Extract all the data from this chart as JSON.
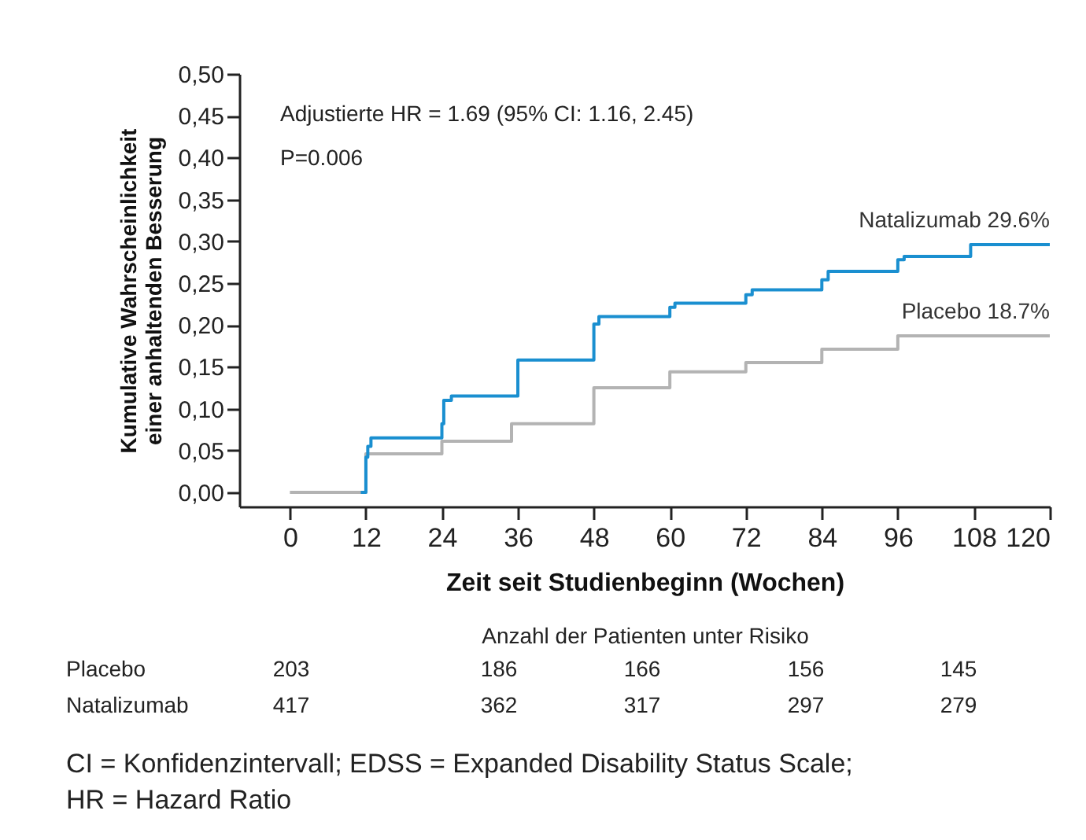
{
  "chart_data": {
    "type": "step",
    "xlabel": "Zeit seit Studienbeginn (Wochen)",
    "ylabel": "Kumulative Wahrscheinlichkeit einer anhaltenden Besserung",
    "xlim": [
      -8,
      120
    ],
    "xticks": [
      0,
      12,
      24,
      36,
      48,
      60,
      72,
      84,
      96,
      108,
      120
    ],
    "ylim": [
      -0.017,
      0.5
    ],
    "yticks": [
      {
        "value": 0,
        "label": "0,00"
      },
      {
        "value": 0.05,
        "label": "0,05"
      },
      {
        "value": 0.1,
        "label": "0,10"
      },
      {
        "value": 0.15,
        "label": "0,15"
      },
      {
        "value": 0.2,
        "label": "0,20"
      },
      {
        "value": 0.25,
        "label": "0,25"
      },
      {
        "value": 0.3,
        "label": "0,30"
      },
      {
        "value": 0.35,
        "label": "0,35"
      },
      {
        "value": 0.4,
        "label": "0,40"
      },
      {
        "value": 0.45,
        "label": "0,45"
      },
      {
        "value": 0.5,
        "label": "0,50"
      }
    ],
    "series": [
      {
        "color": "#b3b3b3",
        "x": [
          0,
          12,
          24,
          35,
          48,
          60,
          72,
          84,
          96,
          120
        ],
        "values": [
          0,
          0.046,
          0.061,
          0.082,
          0.125,
          0.144,
          0.155,
          0.171,
          0.187,
          0.187
        ]
      },
      {
        "color": "#1a8fd0",
        "x": [
          11.2,
          12,
          12.3,
          12.8,
          24,
          24.3,
          25.5,
          36,
          48,
          48.8,
          60,
          60.8,
          72,
          73,
          84,
          85,
          96,
          97,
          107.5,
          120
        ],
        "values": [
          0,
          0.042,
          0.055,
          0.065,
          0.082,
          0.11,
          0.115,
          0.158,
          0.201,
          0.21,
          0.221,
          0.226,
          0.236,
          0.242,
          0.254,
          0.264,
          0.278,
          0.282,
          0.296,
          0.296
        ]
      }
    ],
    "annotations": [
      "Adjustierte HR = 1.69 (95% CI: 1.16, 2.45)",
      "P=0.006",
      {
        "text": "Natalizumab 29.6%",
        "x": 120,
        "y": 0.296
      },
      {
        "text": "Placebo 18.7%",
        "x": 120,
        "y": 0.187
      },
      "Anzahl der Patienten unter Risiko",
      "Placebo",
      "203",
      "186",
      "166",
      "156",
      "145",
      "Natalizumab",
      "417",
      "362",
      "317",
      "297",
      "279",
      "CI = Konfidenzintervall; EDSS = Expanded Disability Status Scale;",
      "HR = Hazard Ratio"
    ],
    "grid": false,
    "marker": "none",
    "line_style": "solid"
  }
}
